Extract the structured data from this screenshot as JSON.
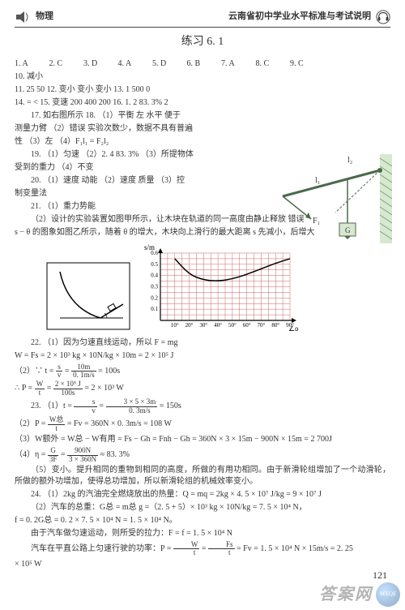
{
  "header": {
    "subject_label": "物理",
    "right_text": "云南省初中学业水平标准与考试说明"
  },
  "title": "练习 6. 1",
  "mc": {
    "q1": "1.  A",
    "q2": "2.  C",
    "q3": "3.  D",
    "q4": "4.  A",
    "q5": "5.  D",
    "q6": "6.  B",
    "q7": "7.  A",
    "q8": "8.  C",
    "q9": "9.  C"
  },
  "line10": "10.  减小",
  "line11": "11.  25  50        12.  变小   变小   变小        13.  1 500    0",
  "line14": "14.   =   <        15.  变速   200  400  200        16.  1. 2    83. 3%    2",
  "line17a": "17.  如右图所示      18. （1）平衡   左   水平   便于",
  "line17b": "测量力臂  （2）错误   实验次数少，数据不具有普遍",
  "line17c": "性  （3）左  （4）F₁l₁ = F₂l₂",
  "line19a": "19. （1）匀速  （2）2. 4   83. 3%  （3）所提物体",
  "line19b": "受到的重力  （4）不变",
  "line20a": "20. （1）速度   动能  （2）速度   质量  （3）控",
  "line20b": "制变量法",
  "line21a": "21.  （1）重力势能",
  "line21b": "（2）设计的实验装置如图甲所示，让木块在轨道的同一高度由静止释放   错误",
  "line21c": "s − θ 的图象如图乙所示，随着 θ 的增大，木块向上滑行的最大距离 s 先减小，后增大",
  "chart": {
    "ylabel": "s/m",
    "y_ticks": [
      "0.6",
      "0.5",
      "0.4",
      "0.3",
      "0.2",
      "0.1"
    ],
    "x_ticks": [
      "10°",
      "20°",
      "30°",
      "40°",
      "50°",
      "60°",
      "70°",
      "80°",
      "90°"
    ],
    "xlabel": "∠α",
    "curve": [
      {
        "x": 10,
        "y": 0.55
      },
      {
        "x": 20,
        "y": 0.41
      },
      {
        "x": 30,
        "y": 0.36
      },
      {
        "x": 40,
        "y": 0.35
      },
      {
        "x": 50,
        "y": 0.37
      },
      {
        "x": 60,
        "y": 0.41
      },
      {
        "x": 70,
        "y": 0.46
      },
      {
        "x": 80,
        "y": 0.51
      },
      {
        "x": 90,
        "y": 0.55
      }
    ],
    "grid_color": "#cc6666",
    "curve_color": "#000000"
  },
  "q22": {
    "l1": "22. （1）因为匀速直线运动，所以 F = mg",
    "l2": "W = Fs = 2 × 10³ kg × 10N/kg × 10m = 2 × 10⁵ J",
    "l3a": "（2）∵ t =",
    "l3_num": "s",
    "l3_den": "v",
    "l3b": " = ",
    "l3_num2": "10m",
    "l3_den2": "0. 1m/s",
    "l3c": " = 100s",
    "l4a": "∴ P = ",
    "l4_num": "W",
    "l4_den": "t",
    "l4b": " = ",
    "l4_num2": "2 × 10⁵ J",
    "l4_den2": "100s",
    "l4c": " = 2 × 10³ W"
  },
  "q23": {
    "l1a": "23. （1）t = ",
    "l1_num": "s",
    "l1_den": "v",
    "l1b": " = ",
    "l1_num2": "3 × 5 × 3m",
    "l1_den2": "0. 3m/s",
    "l1c": " = 150s",
    "l2a": "（2）P = ",
    "l2_num": "W总",
    "l2_den": "t",
    "l2b": " = Fv = 360N × 0. 3m/s = 108 W",
    "l3": "（3）W额外 = W总 − W有用 = Fs − Gh = Fnh − Gh = 360N × 3 × 15m − 900N × 15m = 2 700J",
    "l4a": "（4）η = ",
    "l4_num": "G",
    "l4_den": "3F",
    "l4b": " = ",
    "l4_num2": "900N",
    "l4_den2": "3 × 360N",
    "l4c": " ≈ 83. 3%",
    "l5": "（5）变小。提升相同的重物到相同的高度，所做的有用功相同。由于新滑轮组增加了一个动滑轮，所做的额外功增加，使得总功增加，所以新滑轮组的机械效率变小。"
  },
  "q24": {
    "l1": "24. （1）2kg 的汽油完全燃烧放出的热量：Q = mq = 2kg × 4. 5 × 10⁷ J/kg = 9 × 10⁷ J",
    "l2": "（2）汽车的总重：G总 = m总 g =（2. 5 + 5）× 10³ kg × 10N/kg = 7. 5 × 10⁴ N，",
    "l3": "f = 0. 2G总 = 0. 2 × 7. 5 × 10⁴ N = 1. 5 × 10⁴ N。",
    "l4": "由于汽车做匀速运动，则所受的拉力：F = f = 1. 5 × 10⁴ N",
    "l5a": "汽车在平直公路上匀速行驶的功率：P = ",
    "l5_num": "W",
    "l5_den": "t",
    "l5b": " = ",
    "l5_num2": "Fs",
    "l5_den2": "t",
    "l5c": " = Fv = 1. 5 × 10⁴ N × 15m/s = 2. 25",
    "l6": "× 10⁵ W"
  },
  "page_number": "121",
  "watermark_text": "答案网",
  "watermark_badge": "MXQE",
  "diagram": {
    "wall_color": "#7aa87a",
    "line_color": "#4a6a4a",
    "labels": {
      "l1": "l₁",
      "l2": "l₂",
      "F1": "F₁",
      "G": "G"
    }
  },
  "curve_diagram": {
    "stroke": "#000000"
  }
}
